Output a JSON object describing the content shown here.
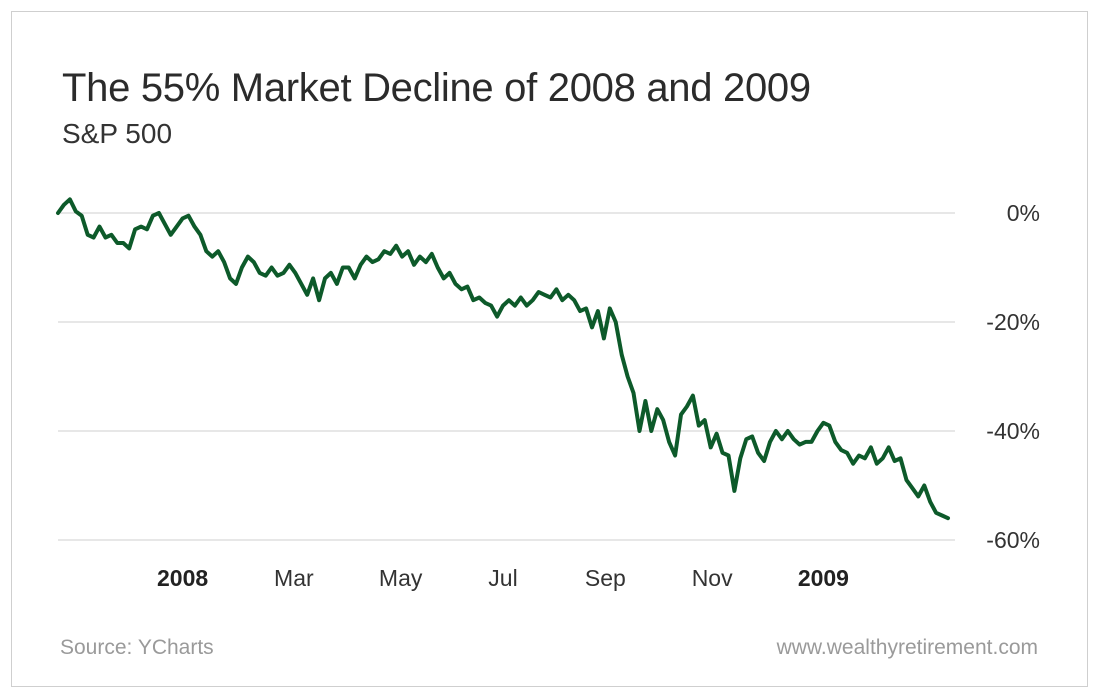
{
  "title": "The 55% Market Decline of 2008 and 2009",
  "subtitle": "S&P 500",
  "source": "Source: YCharts",
  "website": "www.wealthyretirement.com",
  "colors": {
    "line": "#0d5a2a",
    "grid": "#cfcfcf",
    "text": "#333333"
  },
  "chart_data": {
    "type": "line",
    "title": "The 55% Market Decline of 2008 and 2009",
    "subtitle": "S&P 500",
    "ylabel_unit": "%",
    "ylim": [
      -60,
      0
    ],
    "y_ticks": [
      {
        "value": 0,
        "label": "0%"
      },
      {
        "value": -20,
        "label": "-20%"
      },
      {
        "value": -40,
        "label": "-40%"
      },
      {
        "value": -60,
        "label": "-60%"
      }
    ],
    "x_ticks": [
      {
        "label": "2008",
        "bold": true,
        "pos": 0.14
      },
      {
        "label": "Mar",
        "bold": false,
        "pos": 0.265
      },
      {
        "label": "May",
        "bold": false,
        "pos": 0.385
      },
      {
        "label": "Jul",
        "bold": false,
        "pos": 0.5
      },
      {
        "label": "Sep",
        "bold": false,
        "pos": 0.615
      },
      {
        "label": "Nov",
        "bold": false,
        "pos": 0.735
      },
      {
        "label": "2009",
        "bold": true,
        "pos": 0.86
      }
    ],
    "grid": true,
    "series": [
      {
        "values": [
          0,
          1.5,
          2.5,
          0.3,
          -0.5,
          -4,
          -4.5,
          -2.5,
          -4.5,
          -4,
          -5.5,
          -5.5,
          -6.5,
          -3,
          -2.5,
          -3,
          -0.5,
          0,
          -2,
          -4,
          -2.5,
          -1,
          -0.5,
          -2.5,
          -4,
          -7,
          -8,
          -7,
          -9,
          -12,
          -13,
          -10,
          -8,
          -9,
          -11,
          -11.5,
          -10,
          -11.5,
          -11,
          -9.5,
          -11,
          -13,
          -15,
          -12,
          -16,
          -12,
          -11,
          -13,
          -10,
          -10,
          -12,
          -9.5,
          -8,
          -9,
          -8.5,
          -7,
          -7.5,
          -6,
          -8,
          -7,
          -9.5,
          -8,
          -9,
          -7.5,
          -10,
          -12,
          -11,
          -13,
          -14,
          -13.5,
          -16,
          -15.5,
          -16.5,
          -17,
          -19,
          -17,
          -16,
          -17,
          -15.5,
          -17,
          -16,
          -14.5,
          -15,
          -15.5,
          -14,
          -16,
          -15,
          -16,
          -18,
          -17.5,
          -21,
          -18,
          -23,
          -17.5,
          -20,
          -26,
          -30,
          -33,
          -40,
          -34.5,
          -40,
          -36,
          -38,
          -42,
          -44.5,
          -37,
          -35.5,
          -33.5,
          -39,
          -38,
          -43,
          -40.5,
          -44,
          -44.5,
          -51,
          -45,
          -41.5,
          -41,
          -44,
          -45.5,
          -42,
          -40,
          -41.5,
          -40,
          -41.5,
          -42.5,
          -42,
          -42,
          -40,
          -38.5,
          -39,
          -42,
          -43.5,
          -44,
          -46,
          -44.5,
          -45,
          -43,
          -46,
          -45,
          -43,
          -45.5,
          -45,
          -49,
          -50.5,
          -52,
          -50,
          -53,
          -55,
          -55.5,
          -56
        ]
      }
    ]
  }
}
